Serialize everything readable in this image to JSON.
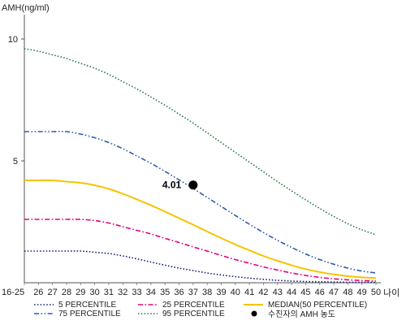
{
  "chart_data": {
    "type": "line",
    "ylabel": "AMH(ng/ml)",
    "xlabel": "나이",
    "yticks": [
      5,
      10
    ],
    "ylim": [
      0,
      11
    ],
    "categories": [
      "16-25",
      "26",
      "27",
      "28",
      "29",
      "30",
      "31",
      "32",
      "33",
      "34",
      "35",
      "36",
      "37",
      "38",
      "39",
      "40",
      "41",
      "42",
      "43",
      "44",
      "45",
      "46",
      "47",
      "48",
      "49",
      "50"
    ],
    "series": [
      {
        "name": "5 PERCENTILE",
        "color": "#1a237e",
        "dash": "dot",
        "values": [
          1.3,
          1.3,
          1.3,
          1.3,
          1.3,
          1.25,
          1.2,
          1.1,
          0.98,
          0.85,
          0.72,
          0.6,
          0.5,
          0.4,
          0.32,
          0.25,
          0.19,
          0.14,
          0.1,
          0.07,
          0.05,
          0.04,
          0.03,
          0.02,
          0.02,
          0.02
        ]
      },
      {
        "name": "25 PERCENTILE",
        "color": "#e6007e",
        "dash": "dashdot",
        "values": [
          2.6,
          2.6,
          2.6,
          2.6,
          2.6,
          2.55,
          2.45,
          2.3,
          2.15,
          2.0,
          1.82,
          1.65,
          1.47,
          1.3,
          1.12,
          0.95,
          0.8,
          0.65,
          0.52,
          0.4,
          0.3,
          0.22,
          0.16,
          0.12,
          0.09,
          0.07
        ]
      },
      {
        "name": "MEDIAN(50 PERCENTILE)",
        "color": "#f5c400",
        "dash": "solid",
        "values": [
          4.2,
          4.2,
          4.2,
          4.15,
          4.1,
          4.0,
          3.85,
          3.65,
          3.42,
          3.18,
          2.92,
          2.65,
          2.38,
          2.1,
          1.83,
          1.57,
          1.33,
          1.1,
          0.9,
          0.72,
          0.56,
          0.44,
          0.34,
          0.27,
          0.22,
          0.19
        ]
      },
      {
        "name": "75 PERCENTILE",
        "color": "#2e5ca8",
        "dash": "dashdotdot",
        "values": [
          6.2,
          6.2,
          6.2,
          6.2,
          6.1,
          5.95,
          5.75,
          5.5,
          5.2,
          4.9,
          4.57,
          4.22,
          3.87,
          3.5,
          3.13,
          2.76,
          2.4,
          2.06,
          1.74,
          1.45,
          1.18,
          0.95,
          0.76,
          0.6,
          0.48,
          0.4
        ]
      },
      {
        "name": "95 PERCENTILE",
        "color": "#2e7d4f",
        "dash": "dot",
        "values": [
          9.6,
          9.5,
          9.35,
          9.2,
          9.0,
          8.8,
          8.55,
          8.25,
          7.95,
          7.62,
          7.28,
          6.92,
          6.55,
          6.15,
          5.75,
          5.35,
          4.95,
          4.55,
          4.15,
          3.77,
          3.4,
          3.05,
          2.72,
          2.42,
          2.17,
          1.97
        ]
      }
    ],
    "marker": {
      "label": "4.01",
      "x": "37",
      "y": 4.01,
      "legend": "수진자의 AMH 농도",
      "color": "#000000"
    }
  }
}
